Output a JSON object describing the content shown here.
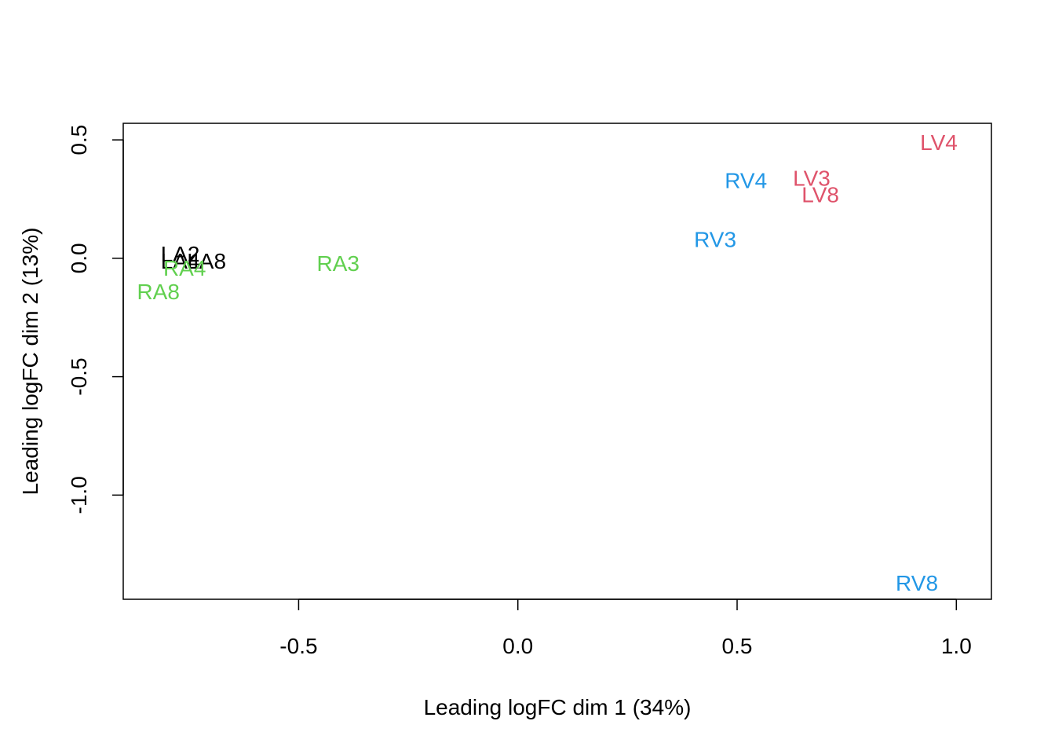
{
  "chart_data": {
    "type": "scatter",
    "title": "",
    "xlabel": "Leading logFC dim 1 (34%)",
    "ylabel": "Leading logFC dim 2 (13%)",
    "xlim": [
      -0.9,
      1.08
    ],
    "ylim": [
      -1.44,
      0.57
    ],
    "x_ticks": [
      -0.5,
      0.0,
      0.5,
      1.0
    ],
    "x_tick_labels": [
      "-0.5",
      "0.0",
      "0.5",
      "1.0"
    ],
    "y_ticks": [
      0.5,
      0.0,
      -0.5,
      -1.0
    ],
    "y_tick_labels": [
      "0.5",
      "0.0",
      "-0.5",
      "-1.0"
    ],
    "grid": false,
    "legend": "none",
    "marker": "text-labels",
    "colors": {
      "LA": "#000000",
      "LV": "#DF536B",
      "RA": "#61D04F",
      "RV": "#2297E6"
    },
    "points": [
      {
        "label": "LA2",
        "x": -0.77,
        "y": 0.02,
        "group": "LA"
      },
      {
        "label": "LA4",
        "x": -0.77,
        "y": -0.01,
        "group": "LA"
      },
      {
        "label": "LA8",
        "x": -0.71,
        "y": -0.01,
        "group": "LA"
      },
      {
        "label": "RA4",
        "x": -0.76,
        "y": -0.04,
        "group": "RA"
      },
      {
        "label": "RA8",
        "x": -0.82,
        "y": -0.14,
        "group": "RA"
      },
      {
        "label": "RA3",
        "x": -0.41,
        "y": -0.02,
        "group": "RA"
      },
      {
        "label": "RV4",
        "x": 0.52,
        "y": 0.33,
        "group": "RV"
      },
      {
        "label": "RV3",
        "x": 0.45,
        "y": 0.08,
        "group": "RV"
      },
      {
        "label": "RV8",
        "x": 0.91,
        "y": -1.37,
        "group": "RV"
      },
      {
        "label": "LV3",
        "x": 0.67,
        "y": 0.34,
        "group": "LV"
      },
      {
        "label": "LV8",
        "x": 0.69,
        "y": 0.27,
        "group": "LV"
      },
      {
        "label": "LV4",
        "x": 0.96,
        "y": 0.49,
        "group": "LV"
      }
    ]
  }
}
